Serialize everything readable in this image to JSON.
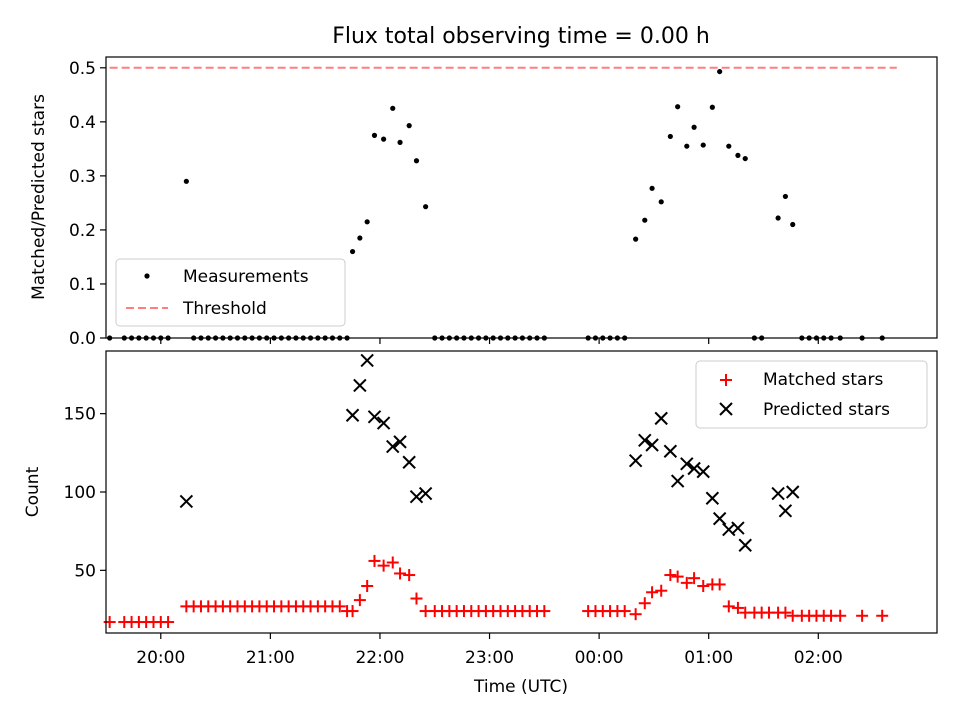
{
  "figure": {
    "title": "Flux total observing time = 0.00 h",
    "xlabel": "Time (UTC)"
  },
  "chart_data": [
    {
      "type": "scatter",
      "panel": "top",
      "ylabel": "Matched/Predicted stars",
      "ylim": [
        0,
        0.52
      ],
      "xlim": [
        "19:30",
        "03:05"
      ],
      "yticks": [
        "0.0",
        "0.1",
        "0.2",
        "0.3",
        "0.4",
        "0.5"
      ],
      "ytick_values": [
        0,
        0.1,
        0.2,
        0.3,
        0.4,
        0.5
      ],
      "xticks": [
        "20:00",
        "21:00",
        "22:00",
        "23:00",
        "00:00",
        "01:00",
        "02:00"
      ],
      "legend_position": "lower-left",
      "legend": [
        {
          "label": "Measurements",
          "marker": "dot",
          "color": "#000000"
        },
        {
          "label": "Threshold",
          "marker": "dashed-line",
          "color": "#ff7f7f"
        }
      ],
      "threshold": {
        "value": 0.5,
        "x_start": "19:32",
        "x_end": "02:43"
      },
      "series": [
        {
          "name": "Measurements",
          "color": "#000000",
          "points": [
            [
              "19:32",
              0
            ],
            [
              "19:40",
              0
            ],
            [
              "19:44",
              0
            ],
            [
              "19:48",
              0
            ],
            [
              "19:52",
              0
            ],
            [
              "19:56",
              0
            ],
            [
              "20:00",
              0
            ],
            [
              "20:04",
              0
            ],
            [
              "20:14",
              0.29
            ],
            [
              "20:18",
              0
            ],
            [
              "20:22",
              0
            ],
            [
              "20:26",
              0
            ],
            [
              "20:30",
              0
            ],
            [
              "20:34",
              0
            ],
            [
              "20:38",
              0
            ],
            [
              "20:42",
              0
            ],
            [
              "20:46",
              0
            ],
            [
              "20:50",
              0
            ],
            [
              "20:54",
              0
            ],
            [
              "20:58",
              0
            ],
            [
              "21:02",
              0
            ],
            [
              "21:06",
              0
            ],
            [
              "21:10",
              0
            ],
            [
              "21:14",
              0
            ],
            [
              "21:18",
              0
            ],
            [
              "21:22",
              0
            ],
            [
              "21:26",
              0
            ],
            [
              "21:30",
              0
            ],
            [
              "21:34",
              0
            ],
            [
              "21:38",
              0
            ],
            [
              "21:42",
              0
            ],
            [
              "21:45",
              0.16
            ],
            [
              "21:49",
              0.185
            ],
            [
              "21:53",
              0.215
            ],
            [
              "21:57",
              0.375
            ],
            [
              "22:02",
              0.368
            ],
            [
              "22:07",
              0.425
            ],
            [
              "22:11",
              0.362
            ],
            [
              "22:16",
              0.393
            ],
            [
              "22:20",
              0.328
            ],
            [
              "22:25",
              0.243
            ],
            [
              "22:30",
              0
            ],
            [
              "22:34",
              0
            ],
            [
              "22:38",
              0
            ],
            [
              "22:42",
              0
            ],
            [
              "22:46",
              0
            ],
            [
              "22:50",
              0
            ],
            [
              "22:54",
              0
            ],
            [
              "22:58",
              0
            ],
            [
              "23:02",
              0
            ],
            [
              "23:06",
              0
            ],
            [
              "23:10",
              0
            ],
            [
              "23:14",
              0
            ],
            [
              "23:18",
              0
            ],
            [
              "23:22",
              0
            ],
            [
              "23:26",
              0
            ],
            [
              "23:30",
              0
            ],
            [
              "23:54",
              0
            ],
            [
              "23:58",
              0
            ],
            [
              "00:02",
              0
            ],
            [
              "00:06",
              0
            ],
            [
              "00:10",
              0
            ],
            [
              "00:14",
              0
            ],
            [
              "00:20",
              0.183
            ],
            [
              "00:25",
              0.218
            ],
            [
              "00:29",
              0.277
            ],
            [
              "00:34",
              0.252
            ],
            [
              "00:39",
              0.373
            ],
            [
              "00:43",
              0.428
            ],
            [
              "00:48",
              0.355
            ],
            [
              "00:52",
              0.39
            ],
            [
              "00:57",
              0.357
            ],
            [
              "01:02",
              0.427
            ],
            [
              "01:06",
              0.493
            ],
            [
              "01:11",
              0.355
            ],
            [
              "01:16",
              0.338
            ],
            [
              "01:20",
              0.332
            ],
            [
              "01:25",
              0
            ],
            [
              "01:29",
              0
            ],
            [
              "01:38",
              0.222
            ],
            [
              "01:42",
              0.262
            ],
            [
              "01:46",
              0.21
            ],
            [
              "01:51",
              0
            ],
            [
              "01:55",
              0
            ],
            [
              "01:59",
              0
            ],
            [
              "02:03",
              0
            ],
            [
              "02:07",
              0
            ],
            [
              "02:12",
              0
            ],
            [
              "02:24",
              0
            ],
            [
              "02:35",
              0
            ]
          ]
        }
      ]
    },
    {
      "type": "scatter",
      "panel": "bottom",
      "ylabel": "Count",
      "ylim": [
        10,
        190
      ],
      "xlim": [
        "19:30",
        "03:05"
      ],
      "yticks": [
        "50",
        "100",
        "150"
      ],
      "ytick_values": [
        50,
        100,
        150
      ],
      "xticks": [
        "20:00",
        "21:00",
        "22:00",
        "23:00",
        "00:00",
        "01:00",
        "02:00"
      ],
      "legend_position": "upper-right",
      "legend": [
        {
          "label": "Matched stars",
          "marker": "plus",
          "color": "#ff0000"
        },
        {
          "label": "Predicted stars",
          "marker": "x",
          "color": "#000000"
        }
      ],
      "series": [
        {
          "name": "Matched stars",
          "color": "#ff0000",
          "points": [
            [
              "19:32",
              17
            ],
            [
              "19:40",
              17
            ],
            [
              "19:44",
              17
            ],
            [
              "19:48",
              17
            ],
            [
              "19:52",
              17
            ],
            [
              "19:56",
              17
            ],
            [
              "20:00",
              17
            ],
            [
              "20:04",
              17
            ],
            [
              "20:14",
              27
            ],
            [
              "20:18",
              27
            ],
            [
              "20:22",
              27
            ],
            [
              "20:26",
              27
            ],
            [
              "20:30",
              27
            ],
            [
              "20:34",
              27
            ],
            [
              "20:38",
              27
            ],
            [
              "20:42",
              27
            ],
            [
              "20:46",
              27
            ],
            [
              "20:50",
              27
            ],
            [
              "20:54",
              27
            ],
            [
              "20:58",
              27
            ],
            [
              "21:02",
              27
            ],
            [
              "21:06",
              27
            ],
            [
              "21:10",
              27
            ],
            [
              "21:14",
              27
            ],
            [
              "21:18",
              27
            ],
            [
              "21:22",
              27
            ],
            [
              "21:26",
              27
            ],
            [
              "21:30",
              27
            ],
            [
              "21:34",
              27
            ],
            [
              "21:38",
              27
            ],
            [
              "21:42",
              24
            ],
            [
              "21:45",
              24
            ],
            [
              "21:49",
              31
            ],
            [
              "21:53",
              40
            ],
            [
              "21:57",
              56
            ],
            [
              "22:02",
              53
            ],
            [
              "22:07",
              55
            ],
            [
              "22:11",
              48
            ],
            [
              "22:16",
              47
            ],
            [
              "22:20",
              32
            ],
            [
              "22:25",
              24
            ],
            [
              "22:30",
              24
            ],
            [
              "22:34",
              24
            ],
            [
              "22:38",
              24
            ],
            [
              "22:42",
              24
            ],
            [
              "22:46",
              24
            ],
            [
              "22:50",
              24
            ],
            [
              "22:54",
              24
            ],
            [
              "22:58",
              24
            ],
            [
              "23:02",
              24
            ],
            [
              "23:06",
              24
            ],
            [
              "23:10",
              24
            ],
            [
              "23:14",
              24
            ],
            [
              "23:18",
              24
            ],
            [
              "23:22",
              24
            ],
            [
              "23:26",
              24
            ],
            [
              "23:30",
              24
            ],
            [
              "23:54",
              24
            ],
            [
              "23:58",
              24
            ],
            [
              "00:02",
              24
            ],
            [
              "00:06",
              24
            ],
            [
              "00:10",
              24
            ],
            [
              "00:14",
              24
            ],
            [
              "00:20",
              22
            ],
            [
              "00:25",
              29
            ],
            [
              "00:29",
              36
            ],
            [
              "00:34",
              37
            ],
            [
              "00:39",
              47
            ],
            [
              "00:43",
              46
            ],
            [
              "00:48",
              42
            ],
            [
              "00:52",
              45
            ],
            [
              "00:57",
              40
            ],
            [
              "01:02",
              41
            ],
            [
              "01:06",
              41
            ],
            [
              "01:11",
              27
            ],
            [
              "01:16",
              26
            ],
            [
              "01:20",
              23
            ],
            [
              "01:25",
              23
            ],
            [
              "01:29",
              23
            ],
            [
              "01:33",
              23
            ],
            [
              "01:38",
              23
            ],
            [
              "01:42",
              23
            ],
            [
              "01:46",
              21
            ],
            [
              "01:51",
              21
            ],
            [
              "01:55",
              21
            ],
            [
              "01:59",
              21
            ],
            [
              "02:03",
              21
            ],
            [
              "02:07",
              21
            ],
            [
              "02:12",
              21
            ],
            [
              "02:24",
              21
            ],
            [
              "02:35",
              21
            ]
          ]
        },
        {
          "name": "Predicted stars",
          "color": "#000000",
          "points": [
            [
              "20:14",
              94
            ],
            [
              "21:45",
              149
            ],
            [
              "21:49",
              168
            ],
            [
              "21:53",
              184
            ],
            [
              "21:57",
              148
            ],
            [
              "22:02",
              144
            ],
            [
              "22:07",
              129
            ],
            [
              "22:11",
              132
            ],
            [
              "22:16",
              119
            ],
            [
              "22:20",
              97
            ],
            [
              "22:25",
              99
            ],
            [
              "00:20",
              120
            ],
            [
              "00:25",
              133
            ],
            [
              "00:29",
              130
            ],
            [
              "00:34",
              147
            ],
            [
              "00:39",
              126
            ],
            [
              "00:43",
              107
            ],
            [
              "00:48",
              118
            ],
            [
              "00:52",
              115
            ],
            [
              "00:57",
              113
            ],
            [
              "01:02",
              96
            ],
            [
              "01:06",
              83
            ],
            [
              "01:11",
              76
            ],
            [
              "01:16",
              77
            ],
            [
              "01:20",
              66
            ],
            [
              "01:38",
              99
            ],
            [
              "01:42",
              88
            ],
            [
              "01:46",
              100
            ]
          ]
        }
      ]
    }
  ]
}
